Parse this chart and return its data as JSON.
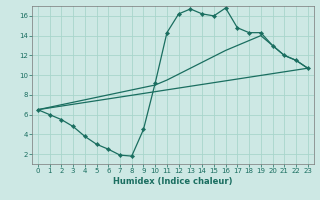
{
  "xlabel": "Humidex (Indice chaleur)",
  "bg_color": "#cde8e4",
  "grid_color": "#a8d5cc",
  "line_color": "#1a6e60",
  "markersize": 2.2,
  "linewidth": 0.9,
  "xlim": [
    -0.5,
    23.5
  ],
  "ylim": [
    1.0,
    17.0
  ],
  "xticks": [
    0,
    1,
    2,
    3,
    4,
    5,
    6,
    7,
    8,
    9,
    10,
    11,
    12,
    13,
    14,
    15,
    16,
    17,
    18,
    19,
    20,
    21,
    22,
    23
  ],
  "yticks": [
    2,
    4,
    6,
    8,
    10,
    12,
    14,
    16
  ],
  "line1_x": [
    0,
    1,
    2,
    3,
    4,
    5,
    6,
    7,
    8,
    9,
    10,
    11,
    12,
    13,
    14,
    15,
    16,
    17,
    18,
    19,
    20,
    21,
    22,
    23
  ],
  "line1_y": [
    6.5,
    6.0,
    5.5,
    4.8,
    3.8,
    3.0,
    2.5,
    1.9,
    1.8,
    4.5,
    9.2,
    14.3,
    16.2,
    16.7,
    16.2,
    16.0,
    16.8,
    14.8,
    14.3,
    14.3,
    13.0,
    12.0,
    11.5,
    10.7
  ],
  "line2_x": [
    0,
    10,
    11,
    16,
    17,
    18,
    19,
    20,
    21,
    22,
    23
  ],
  "line2_y": [
    6.5,
    9.0,
    9.5,
    12.5,
    13.0,
    13.5,
    14.0,
    13.0,
    12.0,
    11.5,
    10.7
  ],
  "line3_x": [
    0,
    23
  ],
  "line3_y": [
    6.5,
    10.7
  ],
  "spine_color": "#777777"
}
